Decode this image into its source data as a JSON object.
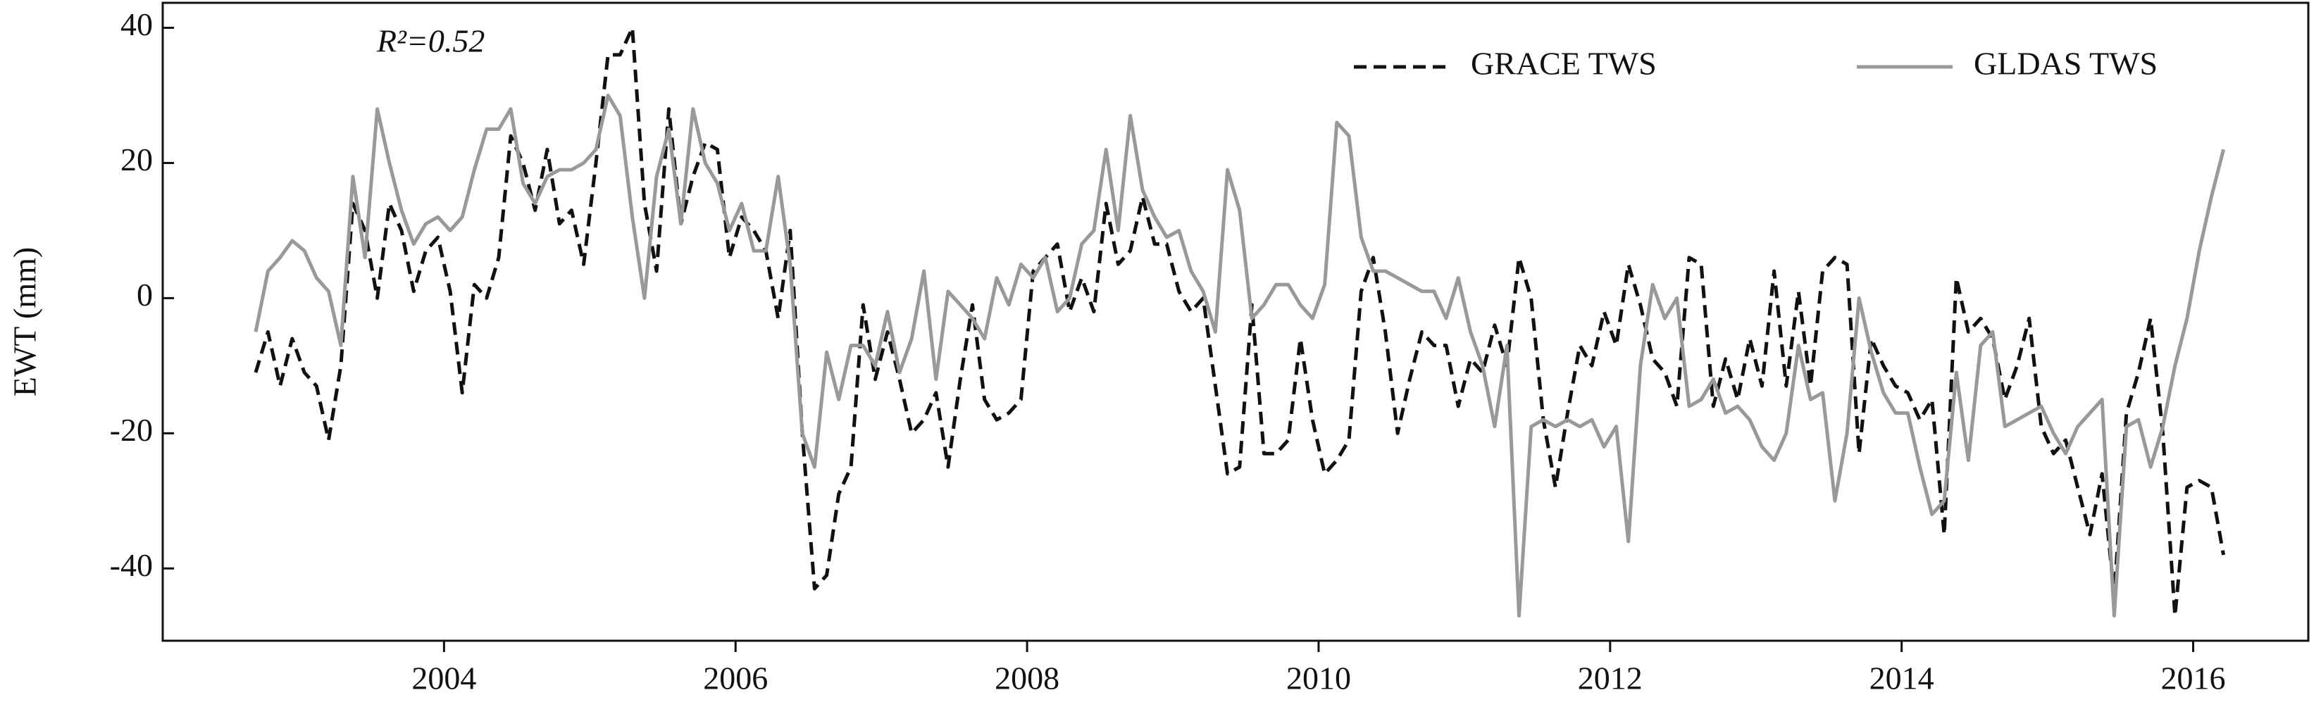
{
  "chart_data": {
    "type": "line",
    "annotation": "R²=0.52",
    "ylabel": "EWT (mm)",
    "xlim": [
      2002.07,
      2016.79
    ],
    "xticks": [
      2004,
      2006,
      2008,
      2010,
      2012,
      2014,
      2016
    ],
    "ylim": [
      -50.7,
      43.7
    ],
    "yticks": [
      -40,
      -20,
      0,
      20,
      40
    ],
    "legend": "upper right",
    "x": [
      2002.708,
      2002.792,
      2002.875,
      2002.958,
      2003.042,
      2003.125,
      2003.208,
      2003.292,
      2003.375,
      2003.458,
      2003.542,
      2003.625,
      2003.708,
      2003.792,
      2003.875,
      2003.958,
      2004.042,
      2004.125,
      2004.208,
      2004.292,
      2004.375,
      2004.458,
      2004.542,
      2004.625,
      2004.708,
      2004.792,
      2004.875,
      2004.958,
      2005.042,
      2005.125,
      2005.208,
      2005.292,
      2005.375,
      2005.458,
      2005.542,
      2005.625,
      2005.708,
      2005.792,
      2005.875,
      2005.958,
      2006.042,
      2006.125,
      2006.208,
      2006.292,
      2006.375,
      2006.458,
      2006.542,
      2006.625,
      2006.708,
      2006.792,
      2006.875,
      2006.958,
      2007.042,
      2007.125,
      2007.208,
      2007.292,
      2007.375,
      2007.458,
      2007.542,
      2007.625,
      2007.708,
      2007.792,
      2007.875,
      2007.958,
      2008.042,
      2008.125,
      2008.208,
      2008.292,
      2008.375,
      2008.458,
      2008.542,
      2008.625,
      2008.708,
      2008.792,
      2008.875,
      2008.958,
      2009.042,
      2009.125,
      2009.208,
      2009.292,
      2009.375,
      2009.458,
      2009.542,
      2009.625,
      2009.708,
      2009.792,
      2009.875,
      2009.958,
      2010.042,
      2010.125,
      2010.208,
      2010.292,
      2010.375,
      2010.458,
      2010.542,
      2010.625,
      2010.708,
      2010.792,
      2010.875,
      2010.958,
      2011.042,
      2011.125,
      2011.208,
      2011.292,
      2011.375,
      2011.458,
      2011.542,
      2011.625,
      2011.708,
      2011.792,
      2011.875,
      2011.958,
      2012.042,
      2012.125,
      2012.208,
      2012.292,
      2012.375,
      2012.458,
      2012.542,
      2012.625,
      2012.708,
      2012.792,
      2012.875,
      2012.958,
      2013.042,
      2013.125,
      2013.208,
      2013.292,
      2013.375,
      2013.458,
      2013.542,
      2013.625,
      2013.708,
      2013.792,
      2013.875,
      2013.958,
      2014.042,
      2014.125,
      2014.208,
      2014.292,
      2014.375,
      2014.458,
      2014.542,
      2014.625,
      2014.708,
      2014.792,
      2014.875,
      2014.958,
      2015.042,
      2015.125,
      2015.208,
      2015.292,
      2015.375,
      2015.458,
      2015.542,
      2015.625,
      2015.708,
      2015.792,
      2015.875,
      2015.958,
      2016.042,
      2016.125,
      2016.208
    ],
    "series": [
      {
        "name": "GRACE TWS",
        "color": "#111111",
        "linestyle": "dashed",
        "values": [
          -11,
          -5,
          -13,
          -6,
          -11,
          -13,
          -21,
          -10,
          14,
          10,
          0,
          14,
          10,
          1,
          7,
          9,
          1,
          -14,
          2,
          0,
          6,
          24,
          20,
          13,
          22,
          11,
          13,
          5,
          20,
          36,
          36,
          40,
          14,
          4,
          28,
          11,
          18,
          23,
          22,
          6,
          12,
          10,
          7,
          -3,
          10,
          -20,
          -43,
          -41,
          -29,
          -25,
          -1,
          -12,
          -5,
          -12,
          -20,
          -18,
          -14,
          -25,
          -12,
          -1,
          -15,
          -18,
          -17,
          -15,
          4,
          6,
          8,
          -2,
          3,
          -2,
          14,
          5,
          7,
          15,
          8,
          8,
          1,
          -2,
          0,
          -13,
          -26,
          -25,
          -1,
          -23,
          -23,
          -21,
          -6,
          -18,
          -26,
          -24,
          -21,
          1,
          6,
          -5,
          -20,
          -12,
          -5,
          -7,
          -7,
          -16,
          -9,
          -11,
          -4,
          -10,
          6,
          0,
          -18,
          -28,
          -17,
          -7,
          -10,
          -2,
          -7,
          5,
          -1,
          -9,
          -11,
          -16,
          6,
          5,
          -16,
          -9,
          -15,
          -6,
          -13,
          4,
          -13,
          1,
          -13,
          4,
          6,
          5,
          -23,
          -6,
          -10,
          -13,
          -14,
          -18,
          -15,
          -35,
          3,
          -5,
          -3,
          -6,
          -15,
          -10,
          -3,
          -19,
          -23,
          -21,
          -28,
          -35,
          -26,
          -44,
          -17,
          -11,
          -3,
          -20,
          -47,
          -28,
          -27,
          -28,
          -38
        ]
      },
      {
        "name": "GLDAS TWS",
        "color": "#999999",
        "linestyle": "solid",
        "values": [
          -5,
          4,
          6,
          8.5,
          7,
          3,
          1,
          -7,
          18,
          6,
          28,
          20,
          13,
          8,
          11,
          12,
          10,
          12,
          19,
          25,
          25,
          28,
          17,
          14,
          18,
          19,
          19,
          20,
          22,
          30,
          27,
          12,
          0,
          18,
          25,
          11,
          28,
          20,
          17,
          10,
          14,
          7,
          7,
          18,
          5,
          -20,
          -25,
          -8,
          -15,
          -7,
          -7,
          -10,
          -2,
          -11,
          -6,
          4,
          -12,
          1,
          -1,
          -3,
          -6,
          3,
          -1,
          5,
          3,
          6,
          -2,
          0,
          8,
          10,
          22,
          10,
          27,
          16,
          12,
          9,
          10,
          4,
          1,
          -5,
          19,
          13,
          -3,
          -1,
          2,
          2,
          -1,
          -3,
          2,
          26,
          24,
          9,
          4,
          4,
          3,
          2,
          1,
          1,
          -3,
          3,
          -5,
          -10,
          -19,
          -7,
          -47,
          -19,
          -18,
          -19,
          -18,
          -19,
          -18,
          -22,
          -19,
          -36,
          -10,
          2,
          -3,
          0,
          -16,
          -15,
          -12,
          -17,
          -16,
          -18,
          -22,
          -24,
          -20,
          -7,
          -15,
          -14,
          -30,
          -20,
          0,
          -8,
          -14,
          -17,
          -17,
          -25,
          -32,
          -30,
          -11,
          -24,
          -7,
          -5,
          -19,
          -18,
          -17,
          -16,
          -20,
          -23,
          -19,
          -17,
          -15,
          -47,
          -19,
          -18,
          -25,
          -19,
          -10,
          -3,
          7,
          15,
          22
        ]
      }
    ]
  }
}
